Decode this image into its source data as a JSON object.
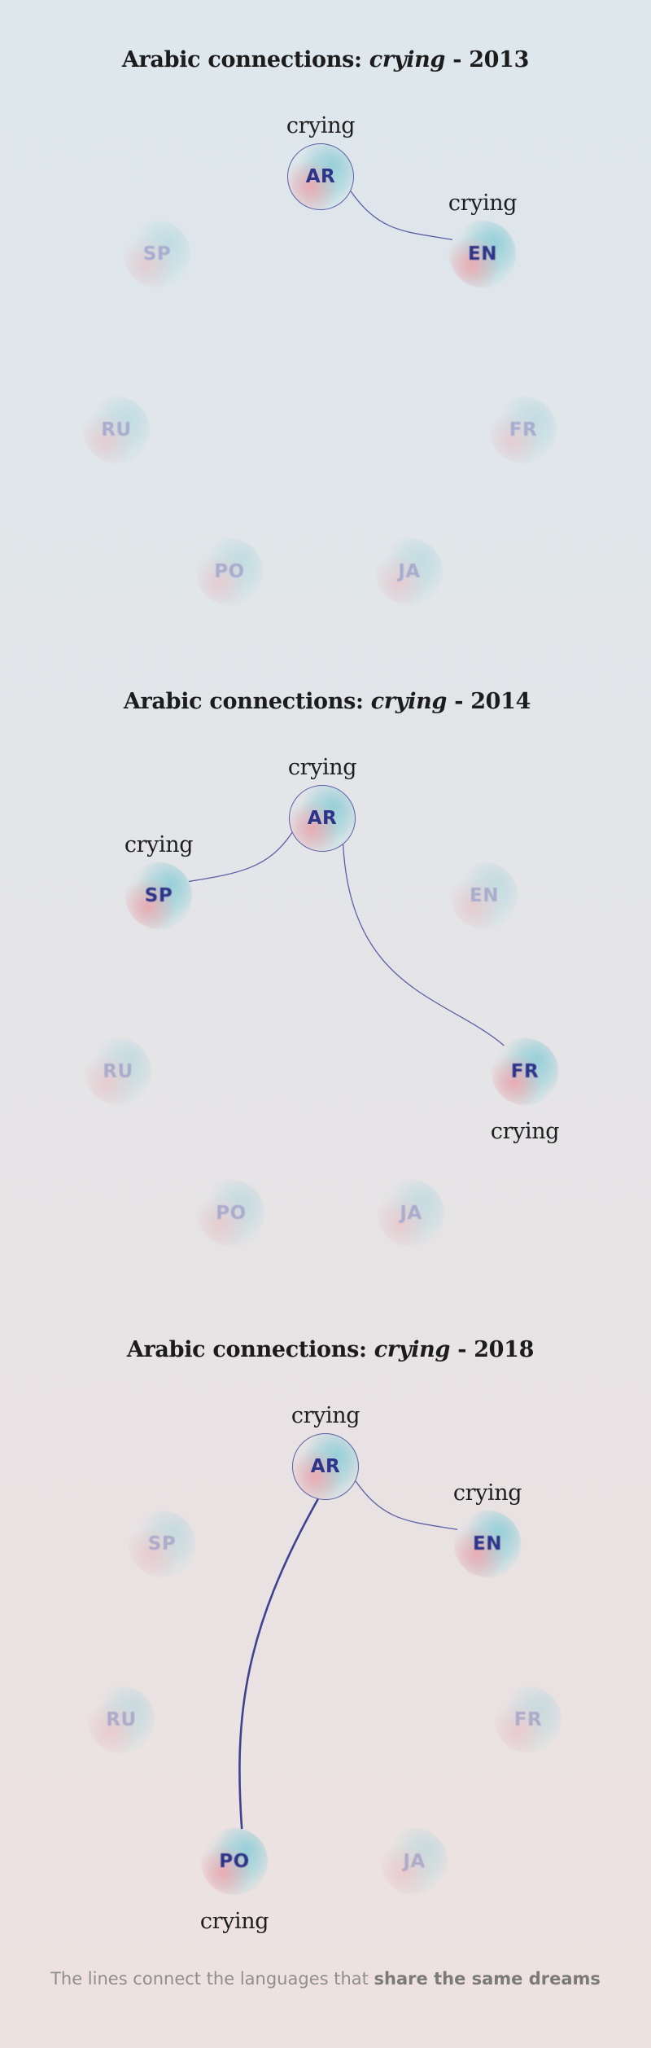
{
  "panels": [
    {
      "title_prefix": "Arabic connections: ",
      "title_word": "crying",
      "title_suffix": " - 2013",
      "center": {
        "code": "AR",
        "word": "crying"
      },
      "nodes": [
        {
          "code": "EN",
          "active": true,
          "word": "crying"
        },
        {
          "code": "SP",
          "active": false,
          "word": ""
        },
        {
          "code": "RU",
          "active": false,
          "word": ""
        },
        {
          "code": "FR",
          "active": false,
          "word": ""
        },
        {
          "code": "PO",
          "active": false,
          "word": ""
        },
        {
          "code": "JA",
          "active": false,
          "word": ""
        }
      ]
    },
    {
      "title_prefix": "Arabic connections: ",
      "title_word": "crying",
      "title_suffix": " - 2014",
      "center": {
        "code": "AR",
        "word": "crying"
      },
      "nodes": [
        {
          "code": "EN",
          "active": false,
          "word": ""
        },
        {
          "code": "SP",
          "active": true,
          "word": "crying"
        },
        {
          "code": "RU",
          "active": false,
          "word": ""
        },
        {
          "code": "FR",
          "active": true,
          "word": "crying"
        },
        {
          "code": "PO",
          "active": false,
          "word": ""
        },
        {
          "code": "JA",
          "active": false,
          "word": ""
        }
      ]
    },
    {
      "title_prefix": "Arabic connections: ",
      "title_word": "crying",
      "title_suffix": " - 2018",
      "center": {
        "code": "AR",
        "word": "crying"
      },
      "nodes": [
        {
          "code": "EN",
          "active": true,
          "word": "crying"
        },
        {
          "code": "SP",
          "active": false,
          "word": ""
        },
        {
          "code": "RU",
          "active": false,
          "word": ""
        },
        {
          "code": "FR",
          "active": false,
          "word": ""
        },
        {
          "code": "PO",
          "active": true,
          "word": "crying",
          "strong": true
        },
        {
          "code": "JA",
          "active": false,
          "word": ""
        }
      ]
    }
  ],
  "footnote": {
    "text": "The lines connect the languages that ",
    "emphasis": "share the same dreams"
  },
  "colors": {
    "link": "#5a60a8",
    "link_strong": "#3d4392",
    "active_text": "#2e3489",
    "dim_text": "#5b5fa8"
  }
}
